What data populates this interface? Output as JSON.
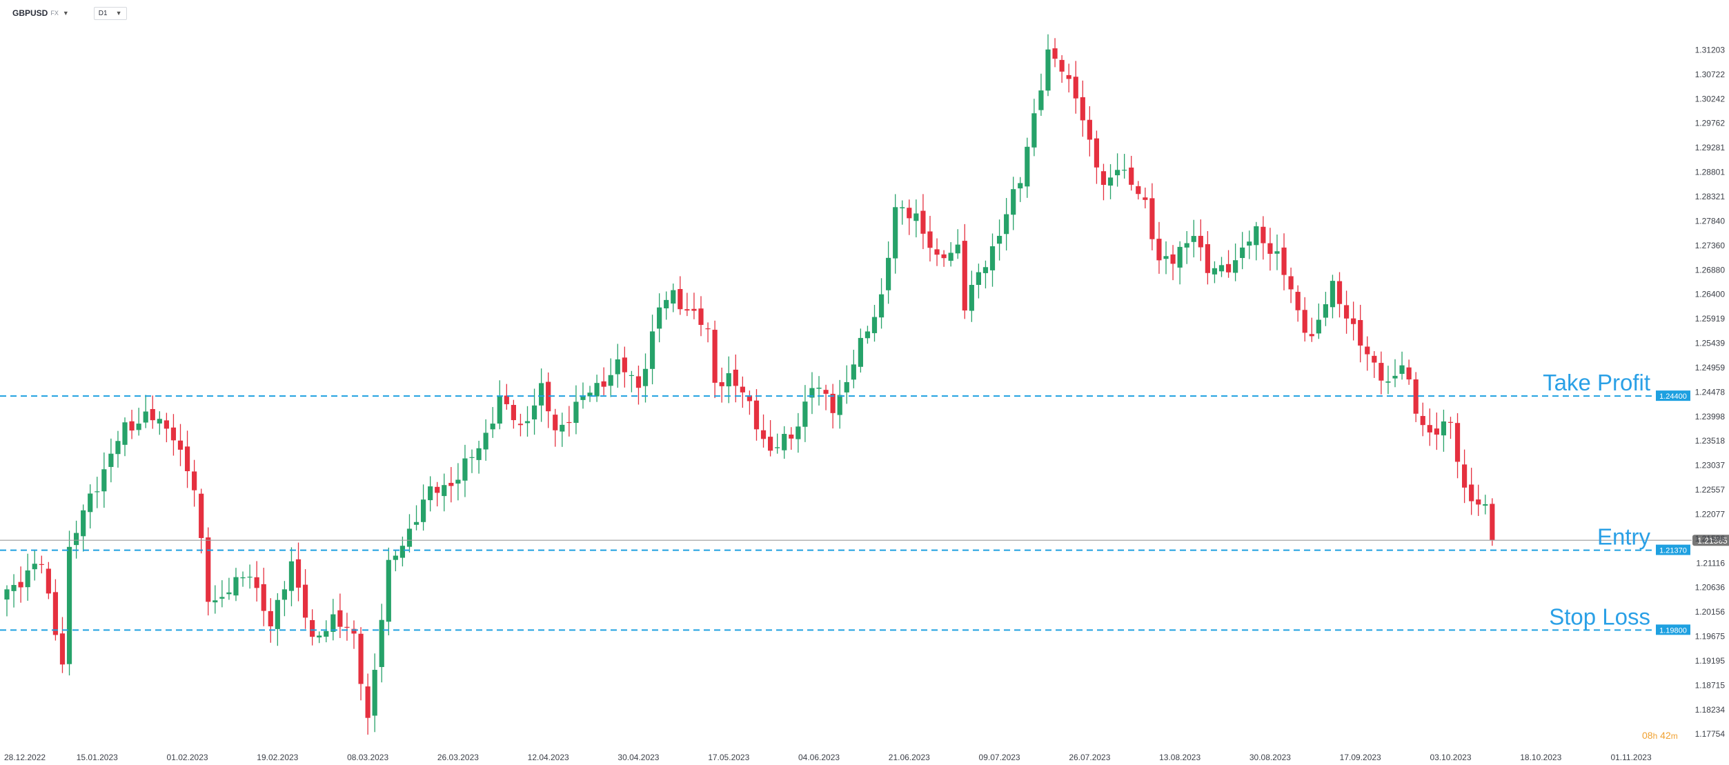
{
  "header": {
    "symbol": "GBPUSD",
    "market": "FX",
    "timeframe": "D1"
  },
  "countdown": {
    "hours": "08",
    "h_unit": "h",
    "minutes": "42",
    "m_unit": "m"
  },
  "colors": {
    "up": "#26a269",
    "down": "#e5303f",
    "level_line": "#1ea0e0",
    "level_text": "#2aa0e6",
    "current_price_line": "#9a9a9a",
    "current_price_tag": "#777777"
  },
  "chart_data": {
    "type": "candlestick",
    "symbol": "GBPUSD",
    "timeframe": "D1",
    "ylim": [
      1.1754,
      1.3144
    ],
    "y_ticks": [
      "1.31203",
      "1.30722",
      "1.30242",
      "1.29762",
      "1.29281",
      "1.28801",
      "1.28321",
      "1.27840",
      "1.27360",
      "1.26880",
      "1.26400",
      "1.25919",
      "1.25439",
      "1.24959",
      "1.24478",
      "1.23998",
      "1.23518",
      "1.23037",
      "1.22557",
      "1.22077",
      "1.21596",
      "1.21116",
      "1.20636",
      "1.20156",
      "1.19675",
      "1.19195",
      "1.18715",
      "1.18234",
      "1.17754"
    ],
    "x_labels": [
      {
        "date": "28.12.2022",
        "i": 0
      },
      {
        "date": "15.01.2023",
        "i": 13
      },
      {
        "date": "01.02.2023",
        "i": 26
      },
      {
        "date": "19.02.2023",
        "i": 39
      },
      {
        "date": "08.03.2023",
        "i": 52
      },
      {
        "date": "26.03.2023",
        "i": 65
      },
      {
        "date": "12.04.2023",
        "i": 78
      },
      {
        "date": "30.04.2023",
        "i": 91
      },
      {
        "date": "17.05.2023",
        "i": 104
      },
      {
        "date": "04.06.2023",
        "i": 117
      },
      {
        "date": "21.06.2023",
        "i": 130
      },
      {
        "date": "09.07.2023",
        "i": 143
      },
      {
        "date": "26.07.2023",
        "i": 156
      },
      {
        "date": "13.08.2023",
        "i": 169
      },
      {
        "date": "30.08.2023",
        "i": 182
      },
      {
        "date": "17.09.2023",
        "i": 195
      },
      {
        "date": "03.10.2023",
        "i": 208
      },
      {
        "date": "18.10.2023",
        "i": 221
      },
      {
        "date": "01.11.2023",
        "i": 234
      }
    ],
    "levels": [
      {
        "label": "Take Profit",
        "price": 1.244,
        "tag": "1.24400"
      },
      {
        "label": "Entry",
        "price": 1.2137,
        "tag": "1.21370"
      },
      {
        "label": "Stop Loss",
        "price": 1.198,
        "tag": "1.19800"
      }
    ],
    "current_price": {
      "price": 1.21565,
      "tag": "1.21565"
    },
    "close_path": [
      [
        0,
        1.206
      ],
      [
        5,
        1.211
      ],
      [
        8,
        1.192
      ],
      [
        9,
        1.213
      ],
      [
        12,
        1.225
      ],
      [
        14,
        1.229
      ],
      [
        17,
        1.238
      ],
      [
        20,
        1.24
      ],
      [
        24,
        1.237
      ],
      [
        27,
        1.225
      ],
      [
        29,
        1.205
      ],
      [
        31,
        1.204
      ],
      [
        35,
        1.21
      ],
      [
        38,
        1.198
      ],
      [
        41,
        1.212
      ],
      [
        44,
        1.195
      ],
      [
        47,
        1.201
      ],
      [
        50,
        1.196
      ],
      [
        52,
        1.181
      ],
      [
        55,
        1.21
      ],
      [
        58,
        1.218
      ],
      [
        61,
        1.225
      ],
      [
        65,
        1.228
      ],
      [
        68,
        1.234
      ],
      [
        71,
        1.243
      ],
      [
        74,
        1.238
      ],
      [
        77,
        1.245
      ],
      [
        79,
        1.237
      ],
      [
        82,
        1.242
      ],
      [
        85,
        1.246
      ],
      [
        88,
        1.25
      ],
      [
        91,
        1.246
      ],
      [
        94,
        1.261
      ],
      [
        96,
        1.264
      ],
      [
        99,
        1.26
      ],
      [
        101,
        1.256
      ],
      [
        102,
        1.247
      ],
      [
        104,
        1.248
      ],
      [
        107,
        1.242
      ],
      [
        110,
        1.233
      ],
      [
        113,
        1.236
      ],
      [
        116,
        1.246
      ],
      [
        119,
        1.242
      ],
      [
        121,
        1.247
      ],
      [
        124,
        1.257
      ],
      [
        126,
        1.264
      ],
      [
        128,
        1.28
      ],
      [
        131,
        1.28
      ],
      [
        134,
        1.27
      ],
      [
        137,
        1.274
      ],
      [
        138,
        1.262
      ],
      [
        141,
        1.27
      ],
      [
        144,
        1.28
      ],
      [
        146,
        1.286
      ],
      [
        148,
        1.3
      ],
      [
        150,
        1.311
      ],
      [
        152,
        1.308
      ],
      [
        154,
        1.304
      ],
      [
        156,
        1.293
      ],
      [
        158,
        1.285
      ],
      [
        160,
        1.29
      ],
      [
        162,
        1.285
      ],
      [
        164,
        1.282
      ],
      [
        166,
        1.271
      ],
      [
        168,
        1.27
      ],
      [
        171,
        1.277
      ],
      [
        173,
        1.268
      ],
      [
        175,
        1.269
      ],
      [
        177,
        1.271
      ],
      [
        180,
        1.276
      ],
      [
        183,
        1.272
      ],
      [
        186,
        1.26
      ],
      [
        188,
        1.256
      ],
      [
        191,
        1.265
      ],
      [
        194,
        1.258
      ],
      [
        196,
        1.251
      ],
      [
        199,
        1.247
      ],
      [
        201,
        1.25
      ],
      [
        203,
        1.241
      ],
      [
        205,
        1.237
      ],
      [
        208,
        1.238
      ],
      [
        210,
        1.226
      ],
      [
        213,
        1.221
      ],
      [
        214,
        1.2157
      ]
    ]
  }
}
